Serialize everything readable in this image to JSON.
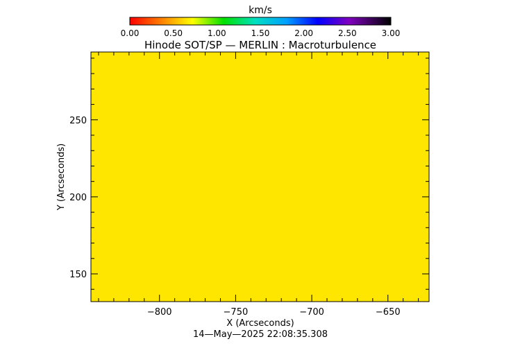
{
  "chart_data": {
    "type": "heatmap",
    "title": "Hinode SOT/SP — MERLIN : Macroturbulence",
    "xlabel": "X (Arcseconds)",
    "ylabel": "Y (Arcseconds)",
    "xlim": [
      -845,
      -623
    ],
    "ylim": [
      132,
      294
    ],
    "xticks": [
      -800,
      -750,
      -700,
      -650
    ],
    "xtick_labels": [
      "−800",
      "−750",
      "−700",
      "−650"
    ],
    "yticks": [
      150,
      200,
      250
    ],
    "ytick_labels": [
      "150",
      "200",
      "250"
    ],
    "x_minor_step": 10,
    "y_minor_step": 10,
    "field_value": 0.67,
    "field_color": "#ffe600",
    "colorbar": {
      "label": "km/s",
      "range": [
        0,
        3
      ],
      "ticks": [
        0,
        0.5,
        1,
        1.5,
        2,
        2.5,
        3
      ],
      "tick_labels": [
        "0.00",
        "0.50",
        "1.00",
        "1.50",
        "2.00",
        "2.50",
        "3.00"
      ],
      "colormap": "rainbow"
    },
    "timestamp": "14—May—2025  22:08:35.308"
  }
}
